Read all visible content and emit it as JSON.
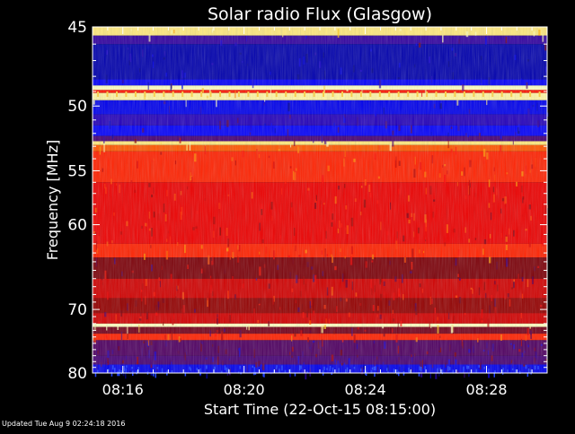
{
  "chart_data": {
    "type": "heatmap",
    "title": "Solar radio Flux (Glasgow)",
    "xlabel": "Start Time (22-Oct-15 08:15:00)",
    "ylabel": "Frequency [MHz]",
    "x_ticks": [
      "08:16",
      "08:20",
      "08:24",
      "08:28"
    ],
    "x_tick_minutes": [
      1,
      5,
      9,
      13
    ],
    "xlim_minutes": [
      0,
      15
    ],
    "y_ticks": [
      45,
      50,
      55,
      60,
      70,
      80
    ],
    "ylim": [
      45,
      80
    ],
    "y_scale": "reciprocal",
    "colormap": [
      "#000080",
      "#0000ff",
      "#400080",
      "#800000",
      "#ff0000",
      "#ff6000",
      "#ffc000",
      "#ffffc0"
    ],
    "bands": [
      {
        "from": 45.0,
        "to": 45.5,
        "level": 0.95
      },
      {
        "from": 45.5,
        "to": 46.0,
        "level": 0.25
      },
      {
        "from": 46.0,
        "to": 48.2,
        "level": 0.05
      },
      {
        "from": 48.2,
        "to": 48.6,
        "level": 0.15
      },
      {
        "from": 48.6,
        "to": 48.9,
        "level": 1.0
      },
      {
        "from": 48.9,
        "to": 49.1,
        "level": 0.6
      },
      {
        "from": 49.1,
        "to": 49.6,
        "level": 0.98
      },
      {
        "from": 49.6,
        "to": 50.6,
        "level": 0.12
      },
      {
        "from": 50.6,
        "to": 51.4,
        "level": 0.22
      },
      {
        "from": 51.4,
        "to": 52.2,
        "level": 0.15
      },
      {
        "from": 52.2,
        "to": 52.6,
        "level": 0.3
      },
      {
        "from": 52.6,
        "to": 52.9,
        "level": 0.95
      },
      {
        "from": 52.9,
        "to": 53.4,
        "level": 0.7
      },
      {
        "from": 53.4,
        "to": 56.0,
        "level": 0.62
      },
      {
        "from": 56.0,
        "to": 62.0,
        "level": 0.55
      },
      {
        "from": 62.0,
        "to": 63.5,
        "level": 0.62
      },
      {
        "from": 63.5,
        "to": 66.0,
        "level": 0.42
      },
      {
        "from": 66.0,
        "to": 68.5,
        "level": 0.52
      },
      {
        "from": 68.5,
        "to": 70.5,
        "level": 0.45
      },
      {
        "from": 70.5,
        "to": 72.0,
        "level": 0.52
      },
      {
        "from": 72.0,
        "to": 72.5,
        "level": 1.0
      },
      {
        "from": 72.5,
        "to": 73.5,
        "level": 0.4
      },
      {
        "from": 73.5,
        "to": 74.5,
        "level": 0.62
      },
      {
        "from": 74.5,
        "to": 77.0,
        "level": 0.32
      },
      {
        "from": 77.0,
        "to": 78.5,
        "level": 0.3
      },
      {
        "from": 78.5,
        "to": 80.0,
        "level": 0.12
      }
    ]
  },
  "footer": {
    "updated_text": "Updated Tue Aug  9 02:24:18 2016"
  }
}
